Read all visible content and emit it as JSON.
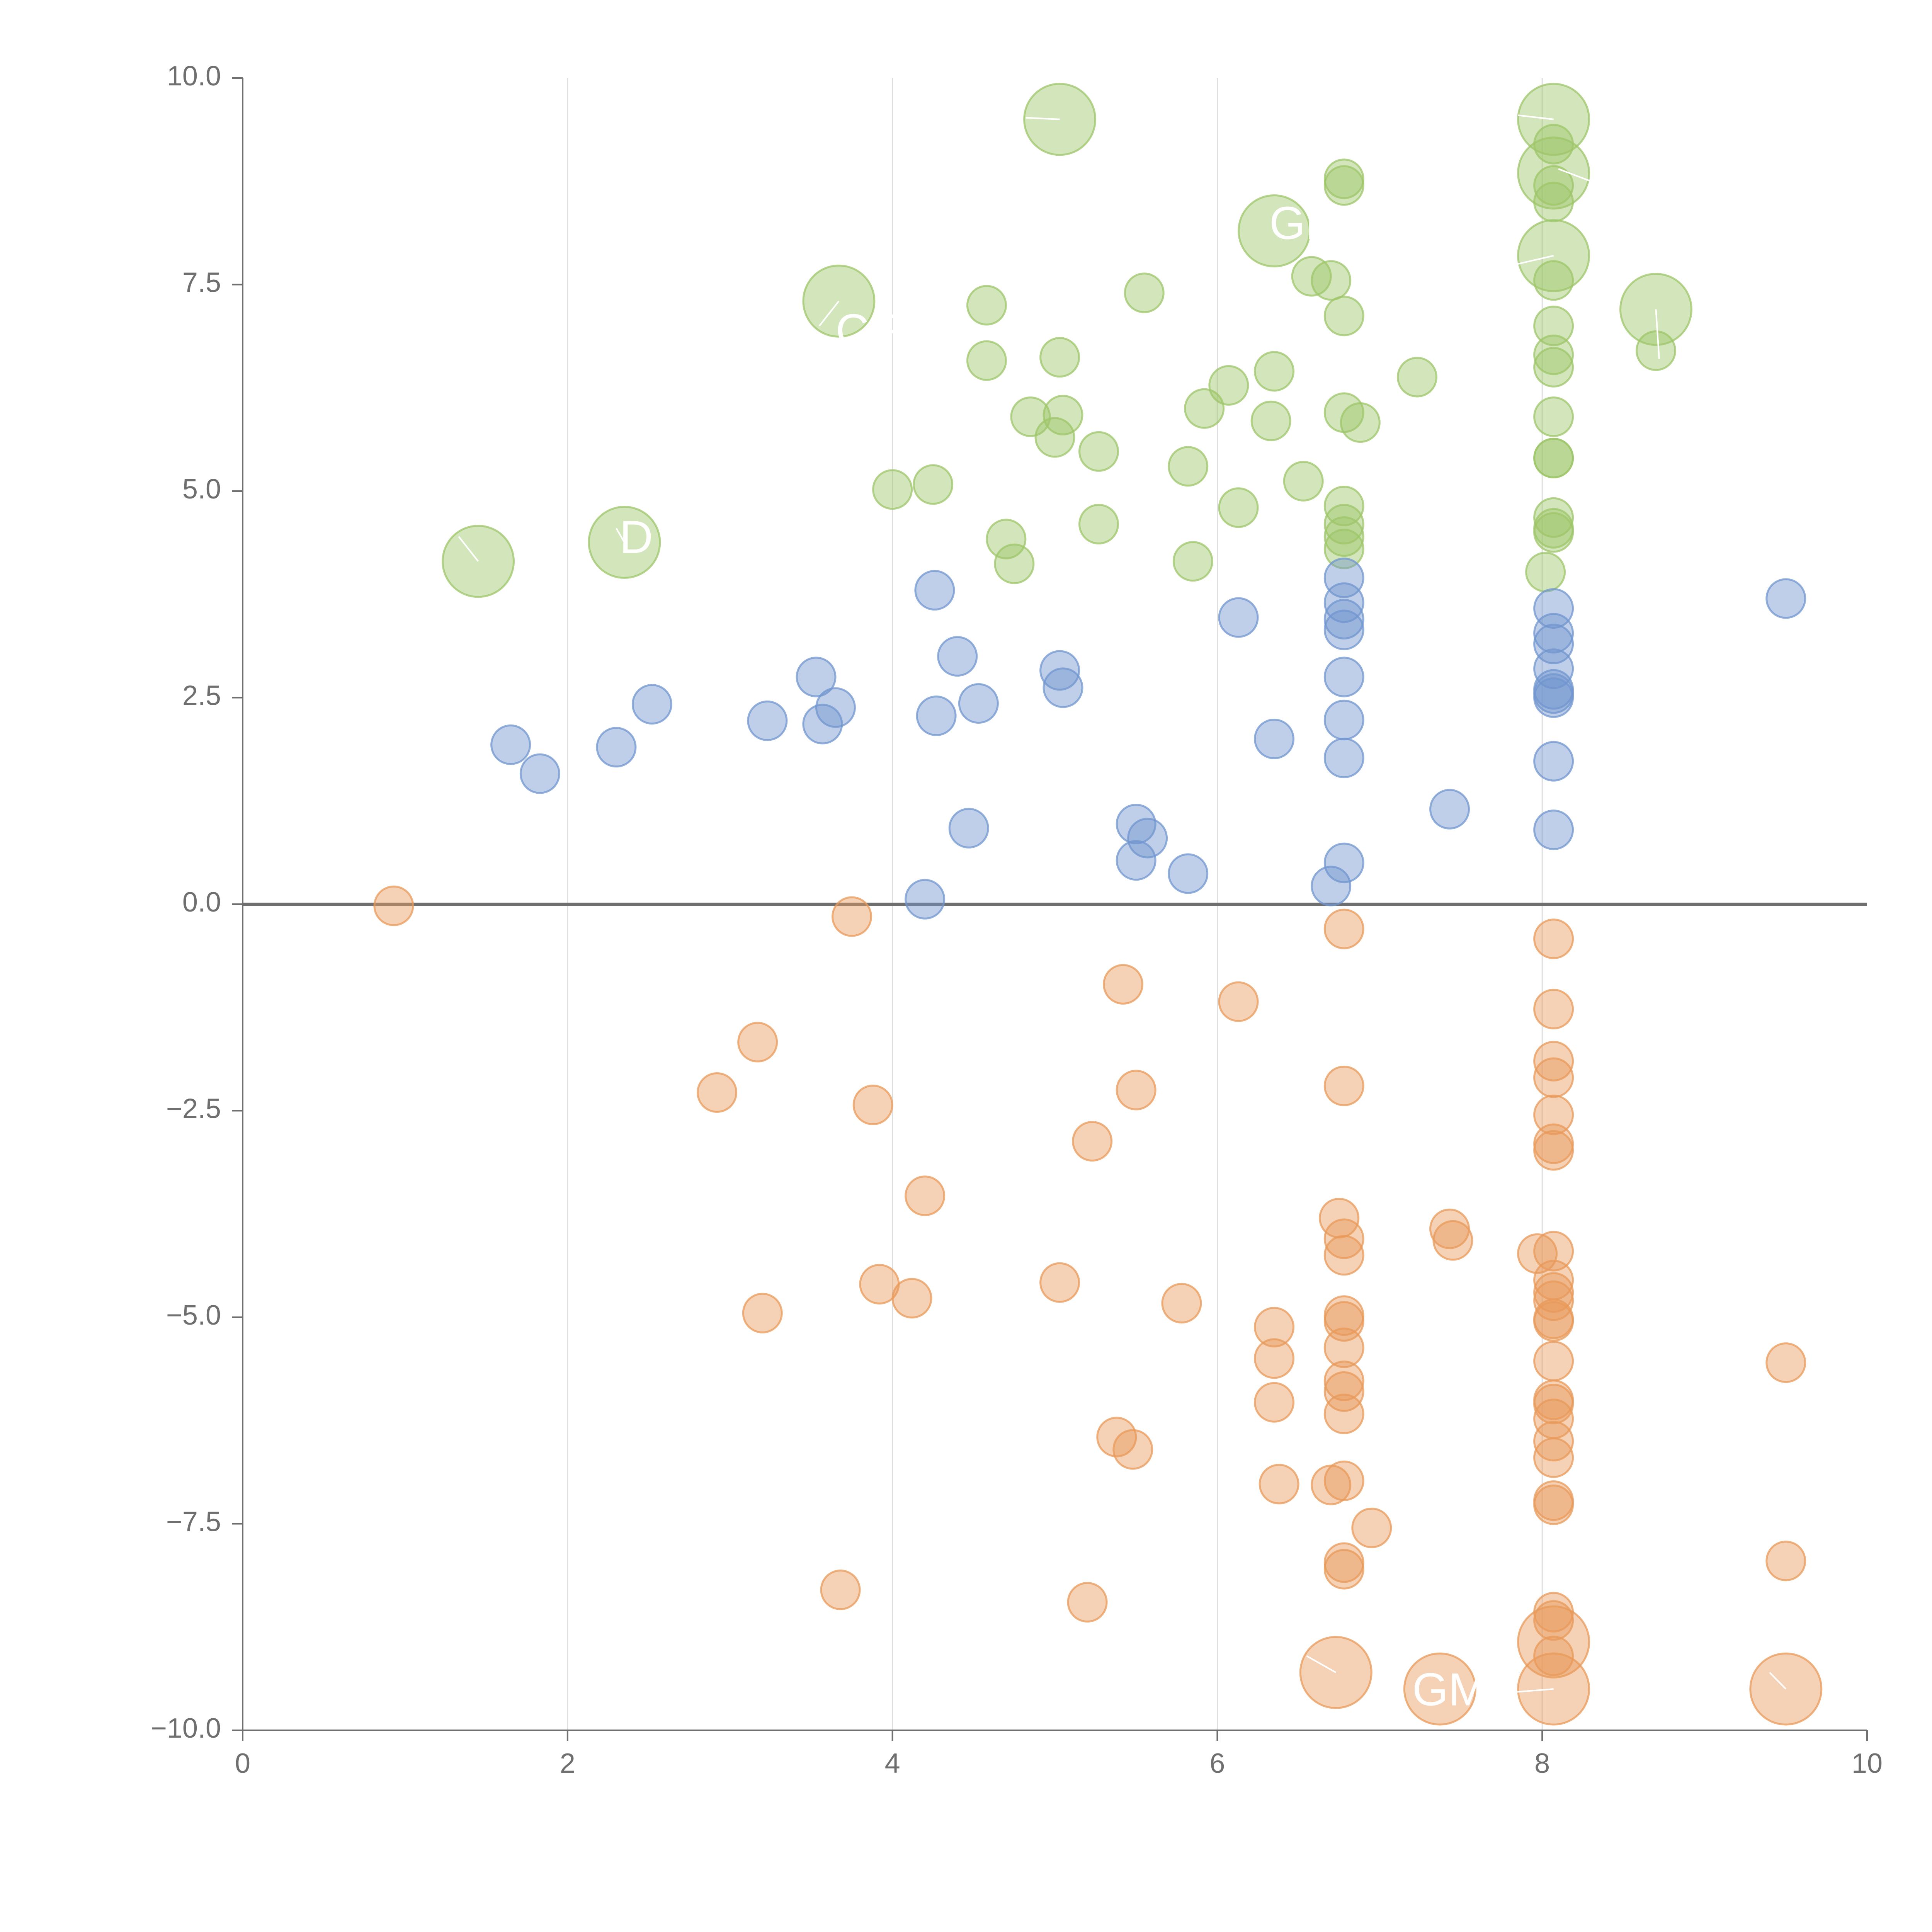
{
  "chart_data": {
    "type": "scatter",
    "title": "",
    "xlabel": "",
    "ylabel": "",
    "xlim": [
      0,
      10
    ],
    "ylim": [
      -10,
      10
    ],
    "grid": "vertical",
    "zero_line": true,
    "x_ticks": [
      "0",
      "2",
      "4",
      "6",
      "8",
      "10"
    ],
    "x_tick_values": [
      0,
      2,
      4,
      6,
      8,
      10
    ],
    "y_ticks": [
      "10.0",
      "7.5",
      "5.0",
      "2.5",
      "0.0",
      "−2.5",
      "−5.0",
      "−7.5",
      "−10.0"
    ],
    "y_tick_values": [
      10,
      7.5,
      5,
      2.5,
      0,
      -2.5,
      -5,
      -7.5,
      -10
    ],
    "colors": {
      "green": "#9dc569",
      "blue": "#7095cf",
      "orange": "#e8995a",
      "axis": "#6f6f6f",
      "grid": "#dddddd",
      "label": "#ffffff"
    },
    "series": [
      {
        "name": "green",
        "color": "#9dc569",
        "points": [
          {
            "x": 5.03,
            "y": 9.5,
            "s": 3
          },
          {
            "x": 8.07,
            "y": 9.5,
            "s": 3
          },
          {
            "x": 8.07,
            "y": 9.2,
            "s": 1
          },
          {
            "x": 8.07,
            "y": 8.85,
            "s": 3
          },
          {
            "x": 8.07,
            "y": 8.7,
            "s": 1
          },
          {
            "x": 8.07,
            "y": 8.5,
            "s": 1
          },
          {
            "x": 6.78,
            "y": 8.78,
            "s": 1
          },
          {
            "x": 6.78,
            "y": 8.7,
            "s": 1
          },
          {
            "x": 6.35,
            "y": 8.15,
            "s": 3
          },
          {
            "x": 8.07,
            "y": 7.85,
            "s": 3
          },
          {
            "x": 8.07,
            "y": 7.55,
            "s": 1
          },
          {
            "x": 3.67,
            "y": 7.3,
            "s": 3
          },
          {
            "x": 5.55,
            "y": 7.4,
            "s": 1
          },
          {
            "x": 4.58,
            "y": 7.25,
            "s": 1
          },
          {
            "x": 6.58,
            "y": 7.6,
            "s": 1
          },
          {
            "x": 6.7,
            "y": 7.55,
            "s": 1
          },
          {
            "x": 6.78,
            "y": 7.12,
            "s": 1
          },
          {
            "x": 8.07,
            "y": 7.0,
            "s": 1
          },
          {
            "x": 8.7,
            "y": 7.2,
            "s": 3
          },
          {
            "x": 8.7,
            "y": 6.7,
            "s": 1
          },
          {
            "x": 8.07,
            "y": 6.65,
            "s": 1
          },
          {
            "x": 8.07,
            "y": 6.5,
            "s": 1
          },
          {
            "x": 4.58,
            "y": 6.58,
            "s": 1
          },
          {
            "x": 5.03,
            "y": 6.62,
            "s": 1
          },
          {
            "x": 6.35,
            "y": 6.45,
            "s": 1
          },
          {
            "x": 7.23,
            "y": 6.38,
            "s": 1
          },
          {
            "x": 6.07,
            "y": 6.28,
            "s": 1
          },
          {
            "x": 5.92,
            "y": 6.0,
            "s": 1
          },
          {
            "x": 4.85,
            "y": 5.9,
            "s": 1
          },
          {
            "x": 5.05,
            "y": 5.92,
            "s": 1
          },
          {
            "x": 5.0,
            "y": 5.65,
            "s": 1
          },
          {
            "x": 6.78,
            "y": 5.95,
            "s": 1
          },
          {
            "x": 6.88,
            "y": 5.83,
            "s": 1
          },
          {
            "x": 8.07,
            "y": 5.9,
            "s": 1
          },
          {
            "x": 6.33,
            "y": 5.85,
            "s": 1
          },
          {
            "x": 5.27,
            "y": 5.48,
            "s": 1
          },
          {
            "x": 5.82,
            "y": 5.3,
            "s": 1
          },
          {
            "x": 8.07,
            "y": 5.4,
            "s": 1
          },
          {
            "x": 8.07,
            "y": 5.4,
            "s": 1
          },
          {
            "x": 6.53,
            "y": 5.12,
            "s": 1
          },
          {
            "x": 4.0,
            "y": 5.02,
            "s": 1
          },
          {
            "x": 4.25,
            "y": 5.08,
            "s": 1
          },
          {
            "x": 6.78,
            "y": 4.82,
            "s": 1
          },
          {
            "x": 6.13,
            "y": 4.8,
            "s": 1
          },
          {
            "x": 8.07,
            "y": 4.68,
            "s": 1
          },
          {
            "x": 8.07,
            "y": 4.5,
            "s": 1
          },
          {
            "x": 8.07,
            "y": 4.55,
            "s": 1
          },
          {
            "x": 6.78,
            "y": 4.6,
            "s": 1
          },
          {
            "x": 6.78,
            "y": 4.45,
            "s": 1
          },
          {
            "x": 6.78,
            "y": 4.3,
            "s": 1
          },
          {
            "x": 5.27,
            "y": 4.6,
            "s": 1
          },
          {
            "x": 4.7,
            "y": 4.42,
            "s": 1
          },
          {
            "x": 2.35,
            "y": 4.38,
            "s": 3
          },
          {
            "x": 1.45,
            "y": 4.15,
            "s": 3
          },
          {
            "x": 4.75,
            "y": 4.12,
            "s": 1
          },
          {
            "x": 5.85,
            "y": 4.15,
            "s": 1
          },
          {
            "x": 8.02,
            "y": 4.02,
            "s": 1
          }
        ]
      },
      {
        "name": "blue",
        "color": "#7095cf",
        "points": [
          {
            "x": 9.5,
            "y": 3.7,
            "s": 1
          },
          {
            "x": 6.78,
            "y": 3.95,
            "s": 1
          },
          {
            "x": 6.78,
            "y": 3.65,
            "s": 1
          },
          {
            "x": 6.78,
            "y": 3.45,
            "s": 1
          },
          {
            "x": 6.78,
            "y": 3.32,
            "s": 1
          },
          {
            "x": 4.26,
            "y": 3.8,
            "s": 1
          },
          {
            "x": 6.13,
            "y": 3.47,
            "s": 1
          },
          {
            "x": 8.07,
            "y": 3.58,
            "s": 1
          },
          {
            "x": 8.07,
            "y": 3.28,
            "s": 1
          },
          {
            "x": 8.07,
            "y": 3.15,
            "s": 1
          },
          {
            "x": 8.07,
            "y": 2.85,
            "s": 1
          },
          {
            "x": 8.07,
            "y": 2.6,
            "s": 1
          },
          {
            "x": 8.07,
            "y": 2.55,
            "s": 1
          },
          {
            "x": 8.07,
            "y": 2.5,
            "s": 1
          },
          {
            "x": 4.4,
            "y": 3.0,
            "s": 1
          },
          {
            "x": 5.03,
            "y": 2.83,
            "s": 1
          },
          {
            "x": 5.05,
            "y": 2.62,
            "s": 1
          },
          {
            "x": 6.78,
            "y": 2.75,
            "s": 1
          },
          {
            "x": 3.53,
            "y": 2.75,
            "s": 1
          },
          {
            "x": 3.65,
            "y": 2.38,
            "s": 1
          },
          {
            "x": 2.52,
            "y": 2.42,
            "s": 1
          },
          {
            "x": 4.53,
            "y": 2.43,
            "s": 1
          },
          {
            "x": 4.27,
            "y": 2.28,
            "s": 1
          },
          {
            "x": 3.23,
            "y": 2.22,
            "s": 1
          },
          {
            "x": 3.57,
            "y": 2.18,
            "s": 1
          },
          {
            "x": 6.78,
            "y": 2.23,
            "s": 1
          },
          {
            "x": 6.35,
            "y": 2.0,
            "s": 1
          },
          {
            "x": 1.65,
            "y": 1.93,
            "s": 1
          },
          {
            "x": 2.3,
            "y": 1.9,
            "s": 1
          },
          {
            "x": 1.83,
            "y": 1.58,
            "s": 1
          },
          {
            "x": 6.78,
            "y": 1.77,
            "s": 1
          },
          {
            "x": 8.07,
            "y": 1.73,
            "s": 1
          },
          {
            "x": 7.43,
            "y": 1.15,
            "s": 1
          },
          {
            "x": 4.47,
            "y": 0.92,
            "s": 1
          },
          {
            "x": 5.5,
            "y": 0.97,
            "s": 1
          },
          {
            "x": 5.57,
            "y": 0.8,
            "s": 1
          },
          {
            "x": 8.07,
            "y": 0.9,
            "s": 1
          },
          {
            "x": 5.5,
            "y": 0.53,
            "s": 1
          },
          {
            "x": 6.78,
            "y": 0.5,
            "s": 1
          },
          {
            "x": 5.82,
            "y": 0.37,
            "s": 1
          },
          {
            "x": 6.7,
            "y": 0.22,
            "s": 1
          },
          {
            "x": 4.2,
            "y": 0.06,
            "s": 1
          }
        ]
      },
      {
        "name": "orange",
        "color": "#e8995a",
        "points": [
          {
            "x": 0.93,
            "y": -0.02,
            "s": 1
          },
          {
            "x": 3.75,
            "y": -0.15,
            "s": 1
          },
          {
            "x": 6.78,
            "y": -0.3,
            "s": 1
          },
          {
            "x": 8.07,
            "y": -0.42,
            "s": 1
          },
          {
            "x": 5.42,
            "y": -0.97,
            "s": 1
          },
          {
            "x": 6.13,
            "y": -1.18,
            "s": 1
          },
          {
            "x": 8.07,
            "y": -1.27,
            "s": 1
          },
          {
            "x": 3.17,
            "y": -1.67,
            "s": 1
          },
          {
            "x": 8.07,
            "y": -1.9,
            "s": 1
          },
          {
            "x": 8.07,
            "y": -2.1,
            "s": 1
          },
          {
            "x": 6.78,
            "y": -2.2,
            "s": 1
          },
          {
            "x": 5.5,
            "y": -2.25,
            "s": 1
          },
          {
            "x": 2.92,
            "y": -2.28,
            "s": 1
          },
          {
            "x": 3.88,
            "y": -2.43,
            "s": 1
          },
          {
            "x": 8.07,
            "y": -2.55,
            "s": 1
          },
          {
            "x": 5.23,
            "y": -2.87,
            "s": 1
          },
          {
            "x": 8.07,
            "y": -2.9,
            "s": 1
          },
          {
            "x": 8.07,
            "y": -2.98,
            "s": 1
          },
          {
            "x": 4.2,
            "y": -3.53,
            "s": 1
          },
          {
            "x": 6.75,
            "y": -3.8,
            "s": 1
          },
          {
            "x": 7.43,
            "y": -3.93,
            "s": 1
          },
          {
            "x": 7.45,
            "y": -4.07,
            "s": 1
          },
          {
            "x": 6.78,
            "y": -4.05,
            "s": 1
          },
          {
            "x": 8.07,
            "y": -4.2,
            "s": 1
          },
          {
            "x": 7.97,
            "y": -4.23,
            "s": 1
          },
          {
            "x": 6.78,
            "y": -4.25,
            "s": 1
          },
          {
            "x": 8.07,
            "y": -4.55,
            "s": 1
          },
          {
            "x": 3.92,
            "y": -4.6,
            "s": 1
          },
          {
            "x": 5.03,
            "y": -4.58,
            "s": 1
          },
          {
            "x": 8.07,
            "y": -4.7,
            "s": 1
          },
          {
            "x": 4.12,
            "y": -4.77,
            "s": 1
          },
          {
            "x": 8.07,
            "y": -4.8,
            "s": 1
          },
          {
            "x": 5.78,
            "y": -4.83,
            "s": 1
          },
          {
            "x": 3.2,
            "y": -4.95,
            "s": 1
          },
          {
            "x": 6.78,
            "y": -4.98,
            "s": 1
          },
          {
            "x": 6.78,
            "y": -5.05,
            "s": 1
          },
          {
            "x": 8.07,
            "y": -5.02,
            "s": 1
          },
          {
            "x": 8.07,
            "y": -5.05,
            "s": 1
          },
          {
            "x": 6.35,
            "y": -5.12,
            "s": 1
          },
          {
            "x": 6.78,
            "y": -5.37,
            "s": 1
          },
          {
            "x": 6.35,
            "y": -5.5,
            "s": 1
          },
          {
            "x": 8.07,
            "y": -5.53,
            "s": 1
          },
          {
            "x": 9.5,
            "y": -5.55,
            "s": 1
          },
          {
            "x": 6.78,
            "y": -5.77,
            "s": 1
          },
          {
            "x": 6.78,
            "y": -5.9,
            "s": 1
          },
          {
            "x": 8.07,
            "y": -6.0,
            "s": 1
          },
          {
            "x": 8.07,
            "y": -6.05,
            "s": 1
          },
          {
            "x": 6.35,
            "y": -6.03,
            "s": 1
          },
          {
            "x": 6.78,
            "y": -6.17,
            "s": 1
          },
          {
            "x": 8.07,
            "y": -6.23,
            "s": 1
          },
          {
            "x": 8.07,
            "y": -6.5,
            "s": 1
          },
          {
            "x": 5.38,
            "y": -6.45,
            "s": 1
          },
          {
            "x": 5.48,
            "y": -6.6,
            "s": 1
          },
          {
            "x": 8.07,
            "y": -6.7,
            "s": 1
          },
          {
            "x": 6.78,
            "y": -6.98,
            "s": 1
          },
          {
            "x": 6.7,
            "y": -7.03,
            "s": 1
          },
          {
            "x": 6.38,
            "y": -7.02,
            "s": 1
          },
          {
            "x": 6.95,
            "y": -7.55,
            "s": 1
          },
          {
            "x": 8.07,
            "y": -7.22,
            "s": 1
          },
          {
            "x": 8.07,
            "y": -7.27,
            "s": 1
          },
          {
            "x": 6.78,
            "y": -7.97,
            "s": 1
          },
          {
            "x": 6.78,
            "y": -8.05,
            "s": 1
          },
          {
            "x": 9.5,
            "y": -7.95,
            "s": 1
          },
          {
            "x": 3.68,
            "y": -8.3,
            "s": 1
          },
          {
            "x": 5.2,
            "y": -8.45,
            "s": 1
          },
          {
            "x": 8.07,
            "y": -8.57,
            "s": 1
          },
          {
            "x": 8.07,
            "y": -8.67,
            "s": 1
          },
          {
            "x": 8.07,
            "y": -8.93,
            "s": 3
          },
          {
            "x": 8.07,
            "y": -9.1,
            "s": 1
          },
          {
            "x": 6.73,
            "y": -9.3,
            "s": 3
          },
          {
            "x": 7.37,
            "y": -9.5,
            "s": 3
          },
          {
            "x": 8.07,
            "y": -9.5,
            "s": 3
          },
          {
            "x": 9.5,
            "y": -9.5,
            "s": 3
          }
        ]
      }
    ],
    "labels": [
      {
        "text": "GMM",
        "x": 6.32,
        "y": 8.2,
        "lx": 6.33,
        "ly": 8.2
      },
      {
        "text": "DYC",
        "x": 2.32,
        "y": 4.4,
        "lx": 2.35,
        "ly": 4.38
      },
      {
        "text": "CF",
        "x": 3.65,
        "y": 6.9,
        "lx": 3.67,
        "ly": 7.3
      },
      {
        "text": "GMF",
        "x": 7.2,
        "y": -9.55,
        "lx": 7.37,
        "ly": -9.5
      }
    ],
    "leaders": [
      {
        "x1": 4.82,
        "y1": 9.52,
        "x2": 5.03,
        "y2": 9.5
      },
      {
        "x1": 7.85,
        "y1": 9.55,
        "x2": 8.07,
        "y2": 9.5
      },
      {
        "x1": 8.1,
        "y1": 8.9,
        "x2": 8.3,
        "y2": 8.75
      },
      {
        "x1": 7.85,
        "y1": 7.75,
        "x2": 8.07,
        "y2": 7.85
      },
      {
        "x1": 3.55,
        "y1": 7.0,
        "x2": 3.67,
        "y2": 7.3
      },
      {
        "x1": 8.7,
        "y1": 7.2,
        "x2": 8.72,
        "y2": 6.6
      },
      {
        "x1": 1.45,
        "y1": 4.15,
        "x2": 1.33,
        "y2": 4.45
      },
      {
        "x1": 2.35,
        "y1": 4.38,
        "x2": 2.3,
        "y2": 4.55
      },
      {
        "x1": 6.73,
        "y1": -9.3,
        "x2": 6.55,
        "y2": -9.1
      },
      {
        "x1": 8.07,
        "y1": -9.5,
        "x2": 7.75,
        "y2": -9.55
      },
      {
        "x1": 9.5,
        "y1": -9.5,
        "x2": 9.4,
        "y2": -9.3
      }
    ]
  }
}
